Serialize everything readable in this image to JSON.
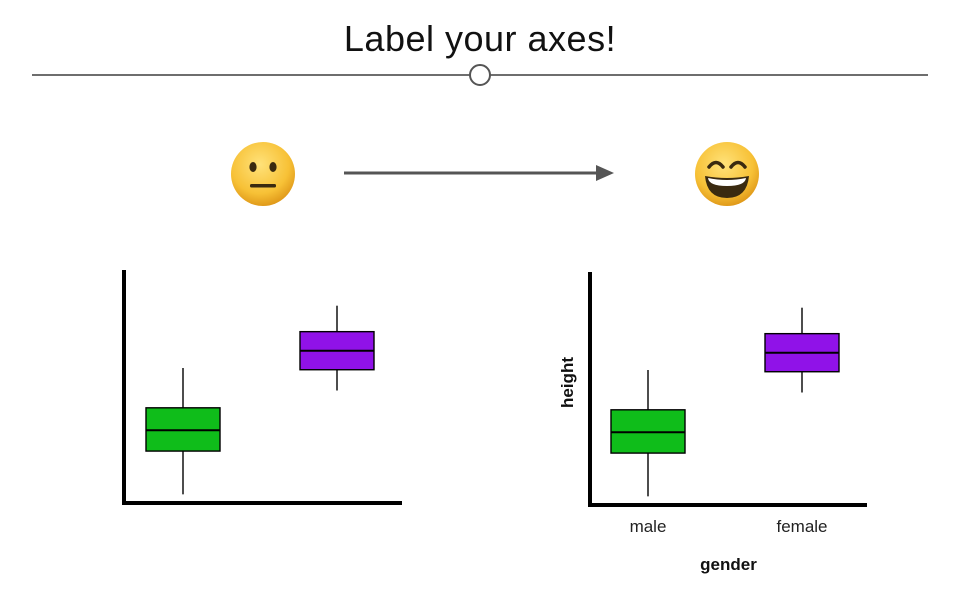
{
  "slide": {
    "title": "Label your axes!"
  },
  "icons": {
    "before": "neutral-face-emoji",
    "after": "grinning-face-emoji",
    "arrow": "right-arrow"
  },
  "colors": {
    "male_box": "#0fbd1a",
    "female_box": "#9012e8",
    "axis": "#000000",
    "rule": "#6e6e6e",
    "emoji_face": "#f7c136"
  },
  "chart_data": [
    {
      "type": "box",
      "title": "",
      "xlabel": "",
      "ylabel": "",
      "categories": [
        "",
        ""
      ],
      "series": [
        {
          "category_index": 0,
          "whisker_low": 0.05,
          "q1": 0.3,
          "median": 0.42,
          "q3": 0.55,
          "whisker_high": 0.78,
          "color": "#0fbd1a"
        },
        {
          "category_index": 1,
          "whisker_low": 0.65,
          "q1": 0.77,
          "median": 0.88,
          "q3": 0.99,
          "whisker_high": 1.14,
          "color": "#9012e8"
        }
      ],
      "ylim": [
        0,
        1.3
      ],
      "tick_labels_shown": false
    },
    {
      "type": "box",
      "title": "",
      "xlabel": "gender",
      "ylabel": "height",
      "categories": [
        "male",
        "female"
      ],
      "series": [
        {
          "category_index": 0,
          "whisker_low": 0.05,
          "q1": 0.3,
          "median": 0.42,
          "q3": 0.55,
          "whisker_high": 0.78,
          "color": "#0fbd1a"
        },
        {
          "category_index": 1,
          "whisker_low": 0.65,
          "q1": 0.77,
          "median": 0.88,
          "q3": 0.99,
          "whisker_high": 1.14,
          "color": "#9012e8"
        }
      ],
      "ylim": [
        0,
        1.3
      ],
      "tick_labels_shown": false
    }
  ]
}
